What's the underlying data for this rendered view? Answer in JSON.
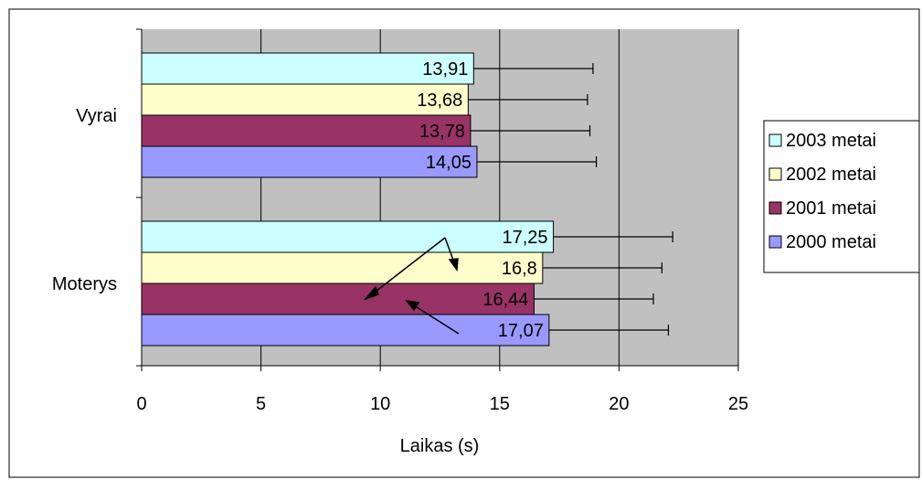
{
  "chart_data": {
    "type": "bar",
    "orientation": "horizontal",
    "title": "",
    "xlabel": "Laikas (s)",
    "ylabel": "",
    "xlim": [
      0,
      25
    ],
    "x_ticks": [
      "0",
      "5",
      "10",
      "15",
      "20",
      "25"
    ],
    "categories": [
      "Vyrai",
      "Moterys"
    ],
    "grid": true,
    "legend_position": "right",
    "error_bar": 5,
    "series": [
      {
        "name": "2003 metai",
        "color": "#CCFFFF",
        "values": [
          13.91,
          17.25
        ],
        "labels": [
          "13,91",
          "17,25"
        ]
      },
      {
        "name": "2002 metai",
        "color": "#FFFFCC",
        "values": [
          13.68,
          16.8
        ],
        "labels": [
          "13,68",
          "16,8"
        ]
      },
      {
        "name": "2001 metai",
        "color": "#993366",
        "values": [
          13.78,
          16.44
        ],
        "labels": [
          "13,78",
          "16,44"
        ]
      },
      {
        "name": "2000 metai",
        "color": "#9999FF",
        "values": [
          14.05,
          17.07
        ],
        "labels": [
          "14,05",
          "17,07"
        ]
      }
    ],
    "plot_background": "#C0C0C0"
  }
}
